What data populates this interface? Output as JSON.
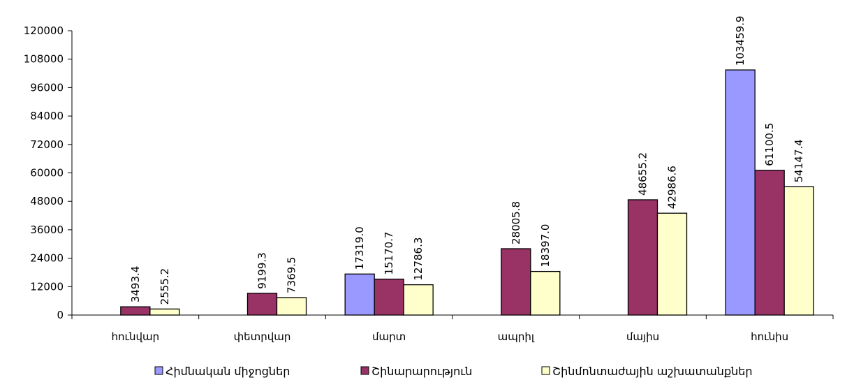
{
  "chart_data": {
    "type": "bar",
    "categories": [
      "հունվար",
      "փետրվար",
      "մարտ",
      "ապրիլ",
      "մայիս",
      "հունիս"
    ],
    "series": [
      {
        "name": "Հիմնական միջոցներ",
        "color": "#9999FF",
        "values": [
          null,
          null,
          17319.0,
          null,
          null,
          103459.9
        ],
        "labels": [
          "",
          "",
          "17319.0",
          "",
          "",
          "103459.9"
        ]
      },
      {
        "name": "Շինարարություն",
        "color": "#993366",
        "values": [
          3493.4,
          9199.3,
          15170.7,
          28005.8,
          48655.2,
          61100.5
        ],
        "labels": [
          "3493.4",
          "9199.3",
          "15170.7",
          "28005.8",
          "48655.2",
          "61100.5"
        ]
      },
      {
        "name": "Շինմոնտաժային աշխատանքներ",
        "color": "#FFFFCC",
        "values": [
          2555.2,
          7369.5,
          12786.3,
          18397.0,
          42986.6,
          54147.4
        ],
        "labels": [
          "2555.2",
          "7369.5",
          "12786.3",
          "18397.0",
          "42986.6",
          "54147.4"
        ]
      }
    ],
    "yticks": [
      "0",
      "12000",
      "24000",
      "36000",
      "48000",
      "60000",
      "72000",
      "84000",
      "96000",
      "108000",
      "120000"
    ],
    "ylim": [
      0,
      120000
    ],
    "grid": false,
    "legend_position": "bottom",
    "title": "",
    "xlabel": "",
    "ylabel": ""
  }
}
